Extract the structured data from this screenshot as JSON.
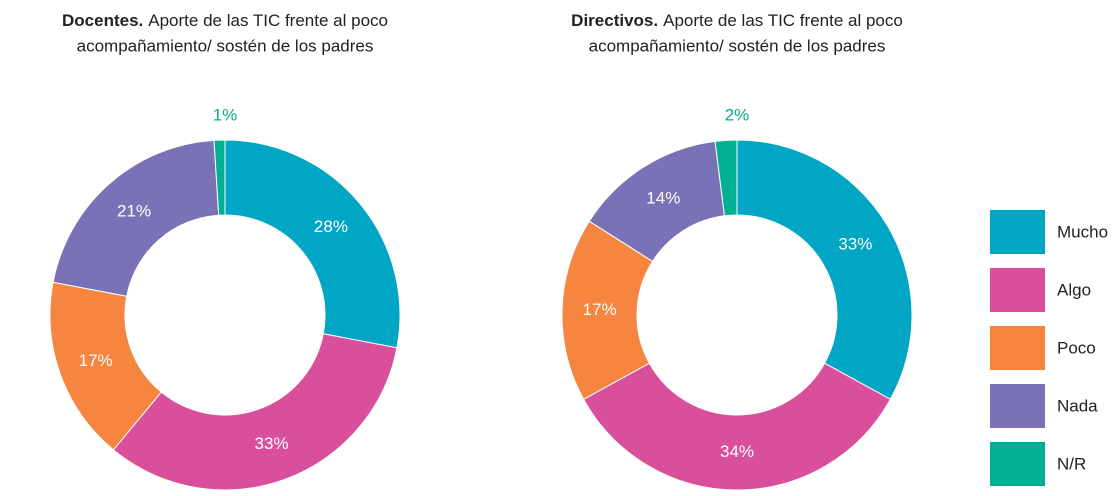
{
  "chart_data": [
    {
      "type": "donut",
      "title": {
        "bold": "Docentes.",
        "lines": [
          "Aporte de las TIC frente al poco",
          "acompañamiento/ sostén de los padres"
        ]
      },
      "categories": [
        "Mucho",
        "Algo",
        "Poco",
        "Nada",
        "N/R"
      ],
      "colors": [
        "#00a6c4",
        "#d94f9c",
        "#f5853f",
        "#7a72b6",
        "#00b092"
      ],
      "values": [
        28,
        33,
        17,
        21,
        1
      ],
      "value_labels": [
        "28%",
        "33%",
        "17%",
        "21%",
        "1%"
      ]
    },
    {
      "type": "donut",
      "title": {
        "bold": "Directivos.",
        "lines": [
          "Aporte de las TIC frente al poco",
          "acompañamiento/ sostén de los padres"
        ]
      },
      "categories": [
        "Mucho",
        "Algo",
        "Poco",
        "Nada",
        "N/R"
      ],
      "colors": [
        "#00a6c4",
        "#d94f9c",
        "#f5853f",
        "#7a72b6",
        "#00b092"
      ],
      "values": [
        33,
        34,
        17,
        14,
        2
      ],
      "value_labels": [
        "33%",
        "34%",
        "17%",
        "14%",
        "2%"
      ],
      "legend": "right"
    }
  ]
}
